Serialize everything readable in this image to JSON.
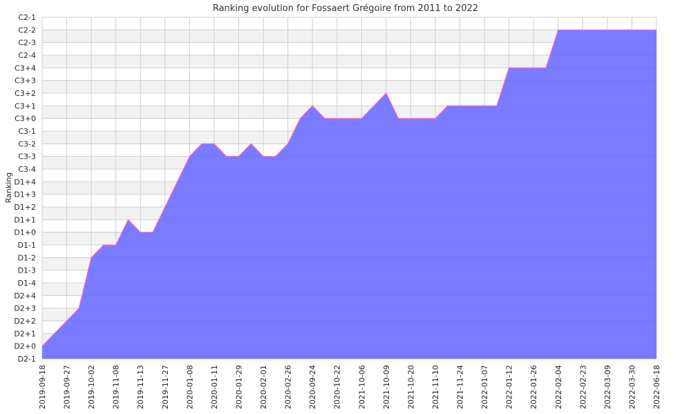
{
  "chart_data": {
    "type": "area",
    "title": "Ranking evolution for Fossaert Grégoire from 2011 to 2022",
    "xlabel": "",
    "ylabel": "Ranking",
    "x_ticks": [
      "2019-09-18",
      "2019-09-27",
      "2019-10-02",
      "2019-11-08",
      "2019-11-13",
      "2019-11-27",
      "2020-01-08",
      "2020-01-11",
      "2020-01-29",
      "2020-02-01",
      "2020-02-26",
      "2020-09-24",
      "2020-10-22",
      "2021-10-06",
      "2021-10-09",
      "2021-10-20",
      "2021-11-10",
      "2021-11-24",
      "2022-01-07",
      "2022-01-12",
      "2022-01-26",
      "2022-02-04",
      "2022-02-23",
      "2022-03-09",
      "2022-03-30",
      "2022-06-18"
    ],
    "y_categories": [
      "D2-1",
      "D2+0",
      "D2+1",
      "D2+2",
      "D2+3",
      "D2+4",
      "D1-4",
      "D1-3",
      "D1-2",
      "D1-1",
      "D1+0",
      "D1+1",
      "D1+2",
      "D1+3",
      "D1+4",
      "C3-4",
      "C3-3",
      "C3-2",
      "C3-1",
      "C3+0",
      "C3+1",
      "C3+2",
      "C3+3",
      "C3+4",
      "C2-4",
      "C2-3",
      "C2-2",
      "C2-1"
    ],
    "series": [
      {
        "points": [
          {
            "x": 0.0,
            "y": "D2+0"
          },
          {
            "x": 0.25,
            "y": "D2+0.5"
          },
          {
            "x": 1.0,
            "y": "D2+2"
          },
          {
            "x": 1.5,
            "y": "D2+3"
          },
          {
            "x": 2.0,
            "y": "D1-2"
          },
          {
            "x": 2.5,
            "y": "D1-1"
          },
          {
            "x": 3.0,
            "y": "D1-1"
          },
          {
            "x": 3.5,
            "y": "D1+1"
          },
          {
            "x": 4.0,
            "y": "D1+0"
          },
          {
            "x": 4.5,
            "y": "D1+0"
          },
          {
            "x": 6.0,
            "y": "C3-3"
          },
          {
            "x": 6.5,
            "y": "C3-2"
          },
          {
            "x": 7.0,
            "y": "C3-2"
          },
          {
            "x": 7.5,
            "y": "C3-3"
          },
          {
            "x": 8.0,
            "y": "C3-3"
          },
          {
            "x": 8.5,
            "y": "C3-2"
          },
          {
            "x": 9.0,
            "y": "C3-3"
          },
          {
            "x": 9.5,
            "y": "C3-3"
          },
          {
            "x": 10.0,
            "y": "C3-2"
          },
          {
            "x": 10.5,
            "y": "C3+0"
          },
          {
            "x": 11.0,
            "y": "C3+1"
          },
          {
            "x": 11.5,
            "y": "C3+0"
          },
          {
            "x": 13.0,
            "y": "C3+0"
          },
          {
            "x": 13.5,
            "y": "C3+1"
          },
          {
            "x": 14.0,
            "y": "C3+2"
          },
          {
            "x": 14.5,
            "y": "C3+0"
          },
          {
            "x": 16.0,
            "y": "C3+0"
          },
          {
            "x": 16.5,
            "y": "C3+1"
          },
          {
            "x": 18.5,
            "y": "C3+1"
          },
          {
            "x": 19.0,
            "y": "C3+4"
          },
          {
            "x": 20.5,
            "y": "C3+4"
          },
          {
            "x": 21.0,
            "y": "C2-2"
          },
          {
            "x": 25.0,
            "y": "C2-2"
          }
        ]
      }
    ],
    "colors": {
      "fill": "#7b7bff",
      "line": "#ff66cc",
      "grid": "#cccccc",
      "band": "#f2f2f2"
    },
    "grid": true,
    "legend": "none"
  }
}
